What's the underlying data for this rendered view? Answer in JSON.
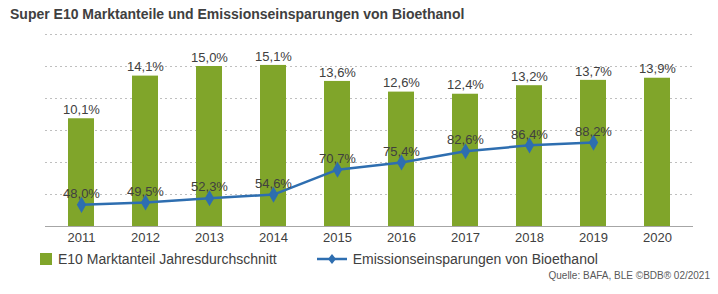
{
  "chart_data": {
    "type": "bar",
    "title": "Super E10 Marktanteile und Emissionseinsparungen von Bioethanol",
    "categories": [
      "2011",
      "2012",
      "2013",
      "2014",
      "2015",
      "2016",
      "2017",
      "2018",
      "2019",
      "2020"
    ],
    "series": [
      {
        "name": "E10 Marktanteil Jahresdurchschnitt",
        "type": "bar",
        "color": "#80a52a",
        "values": [
          10.1,
          14.1,
          15.0,
          15.1,
          13.6,
          12.6,
          12.4,
          13.2,
          13.7,
          13.9
        ],
        "value_labels": [
          "10,1%",
          "14,1%",
          "15,0%",
          "15,1%",
          "13,6%",
          "12,6%",
          "12,4%",
          "13,2%",
          "13,7%",
          "13,9%"
        ]
      },
      {
        "name": "Emissionseinsparungen von Bioethanol",
        "type": "line",
        "axis": "y2",
        "color": "#2e6eb0",
        "marker": "diamond",
        "values": [
          48.0,
          49.5,
          52.3,
          54.6,
          70.7,
          75.4,
          82.6,
          86.4,
          88.2,
          null
        ],
        "value_labels": [
          "48,0%",
          "49,5%",
          "52,3%",
          "54,6%",
          "70,7%",
          "75,4%",
          "82,6%",
          "86,4%",
          "88,2%",
          null
        ]
      }
    ],
    "ylim": [
      0,
      18
    ],
    "yticks": [
      0,
      3,
      6,
      9,
      12,
      15,
      18
    ],
    "y2lim": [
      34,
      158
    ],
    "grid": true,
    "data_labels": true,
    "tick_labels": "x",
    "legend": "bottom",
    "caption": "Quelle: BAFA, BLE ©BDB® 02/2021"
  }
}
